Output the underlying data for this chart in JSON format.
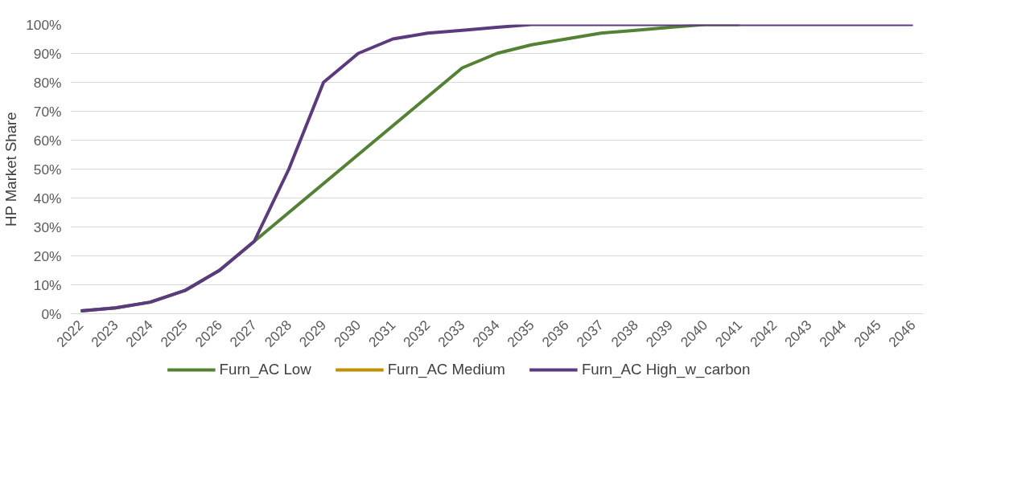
{
  "chart_data": {
    "type": "line",
    "ylabel": "HP Market Share",
    "categories": [
      "2022",
      "2023",
      "2024",
      "2025",
      "2026",
      "2027",
      "2028",
      "2029",
      "2030",
      "2031",
      "2032",
      "2033",
      "2034",
      "2035",
      "2036",
      "2037",
      "2038",
      "2039",
      "2040",
      "2041",
      "2042",
      "2043",
      "2044",
      "2045",
      "2046"
    ],
    "series": [
      {
        "name": "Furn_AC Low",
        "color": "#548235",
        "values": [
          1,
          2,
          4,
          8,
          15,
          25,
          35,
          45,
          55,
          65,
          75,
          85,
          90,
          93,
          95,
          97,
          98,
          99,
          100,
          100,
          null,
          null,
          null,
          null,
          null
        ]
      },
      {
        "name": "Furn_AC Medium",
        "color": "#bf9000",
        "values": [
          null,
          null,
          null,
          null,
          null,
          null,
          null,
          null,
          null,
          null,
          null,
          null,
          null,
          null,
          null,
          null,
          null,
          null,
          null,
          null,
          null,
          null,
          null,
          null,
          null
        ]
      },
      {
        "name": "Furn_AC High_w_carbon",
        "color": "#5b3a7e",
        "values": [
          1,
          2,
          4,
          8,
          15,
          25,
          50,
          80,
          90,
          95,
          97,
          98,
          99,
          100,
          100,
          100,
          100,
          100,
          100,
          100,
          100,
          100,
          100,
          100,
          100
        ]
      }
    ],
    "ylim": [
      0,
      100
    ],
    "yticks": [
      {
        "value": 0,
        "label": "0%"
      },
      {
        "value": 10,
        "label": "10%"
      },
      {
        "value": 20,
        "label": "20%"
      },
      {
        "value": 30,
        "label": "30%"
      },
      {
        "value": 40,
        "label": "40%"
      },
      {
        "value": 50,
        "label": "50%"
      },
      {
        "value": 60,
        "label": "60%"
      },
      {
        "value": 70,
        "label": "70%"
      },
      {
        "value": 80,
        "label": "80%"
      },
      {
        "value": 90,
        "label": "90%"
      },
      {
        "value": 100,
        "label": "100%"
      }
    ],
    "grid": "y",
    "legend": "bottom",
    "marker": "none",
    "line_style": "solid"
  }
}
